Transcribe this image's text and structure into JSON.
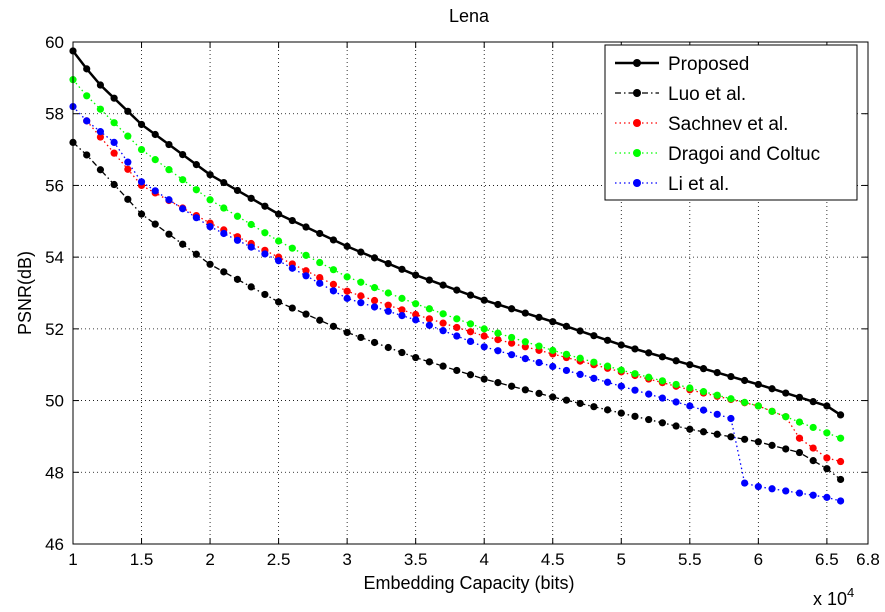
{
  "chart_data": {
    "type": "line",
    "title": "Lena",
    "xlabel": "Embedding Capacity (bits)",
    "ylabel": "PSNR(dB)",
    "x_multiplier_label": "x 10",
    "x_multiplier_exponent": "4",
    "xlim": [
      1,
      6.8
    ],
    "ylim": [
      46,
      60
    ],
    "x_ticks": [
      1,
      1.5,
      2,
      2.5,
      3,
      3.5,
      4,
      4.5,
      5,
      5.5,
      6,
      6.5,
      6.8
    ],
    "x_tick_labels": [
      "1",
      "1.5",
      "2",
      "2.5",
      "3",
      "3.5",
      "4",
      "4.5",
      "5",
      "5.5",
      "6",
      "6.5",
      "6.8"
    ],
    "y_ticks": [
      46,
      48,
      50,
      52,
      54,
      56,
      58,
      60
    ],
    "y_tick_labels": [
      "46",
      "48",
      "50",
      "52",
      "54",
      "56",
      "58",
      "60"
    ],
    "grid": true,
    "legend_position": "top-right",
    "series": [
      {
        "name": "Proposed",
        "color": "#000000",
        "line_style": "solid",
        "x_start": 1.0,
        "x_end": 6.6,
        "points": 57,
        "x_anchors": [
          1.0,
          1.1,
          1.2,
          1.5,
          2.0,
          2.5,
          3.0,
          3.5,
          4.0,
          4.5,
          5.0,
          5.5,
          6.0,
          6.5,
          6.6
        ],
        "y_anchors": [
          59.75,
          59.25,
          58.8,
          57.7,
          56.3,
          55.2,
          54.3,
          53.5,
          52.8,
          52.2,
          51.55,
          51.0,
          50.45,
          49.85,
          49.6
        ]
      },
      {
        "name": "Luo et al.",
        "color": "#000000",
        "line_style": "dashdot",
        "x_start": 1.0,
        "x_end": 6.6,
        "points": 57,
        "x_anchors": [
          1.0,
          1.1,
          1.5,
          2.0,
          2.5,
          3.0,
          3.5,
          4.0,
          4.5,
          5.0,
          5.5,
          6.0,
          6.3,
          6.5,
          6.6
        ],
        "y_anchors": [
          57.2,
          56.85,
          55.2,
          53.8,
          52.75,
          51.9,
          51.2,
          50.6,
          50.1,
          49.65,
          49.2,
          48.85,
          48.55,
          48.1,
          47.8
        ]
      },
      {
        "name": "Sachnev  et al.",
        "color": "#ff0000",
        "line_style": "dotted",
        "x_start": 1.1,
        "x_end": 6.6,
        "points": 56,
        "x_anchors": [
          1.1,
          1.5,
          2.0,
          2.5,
          3.0,
          3.5,
          4.0,
          4.5,
          5.0,
          5.5,
          6.0,
          6.2,
          6.3,
          6.5,
          6.6
        ],
        "y_anchors": [
          57.8,
          56.0,
          54.95,
          54.0,
          53.05,
          52.4,
          51.8,
          51.3,
          50.8,
          50.3,
          49.85,
          49.55,
          48.95,
          48.4,
          48.3
        ]
      },
      {
        "name": "Dragoi and Coltuc",
        "color": "#00ff00",
        "line_style": "dotted",
        "x_start": 1.0,
        "x_end": 6.6,
        "points": 57,
        "x_anchors": [
          1.0,
          1.1,
          1.5,
          2.0,
          2.5,
          3.0,
          3.5,
          4.0,
          4.5,
          5.0,
          5.5,
          6.0,
          6.5,
          6.6
        ],
        "y_anchors": [
          58.95,
          58.5,
          57.0,
          55.6,
          54.45,
          53.45,
          52.7,
          52.0,
          51.4,
          50.85,
          50.35,
          49.85,
          49.1,
          48.95
        ]
      },
      {
        "name": "Li et al.",
        "color": "#0000ff",
        "line_style": "dotted",
        "x_start": 1.0,
        "x_end": 6.6,
        "points": 57,
        "x_anchors": [
          1.0,
          1.1,
          1.3,
          1.5,
          2.0,
          2.5,
          3.0,
          3.5,
          4.0,
          4.5,
          5.0,
          5.5,
          5.8,
          5.9,
          6.0,
          6.5,
          6.6
        ],
        "y_anchors": [
          58.2,
          57.8,
          57.2,
          56.1,
          54.85,
          53.9,
          52.85,
          52.25,
          51.5,
          50.95,
          50.4,
          49.85,
          49.5,
          47.7,
          47.6,
          47.3,
          47.2
        ]
      }
    ]
  }
}
